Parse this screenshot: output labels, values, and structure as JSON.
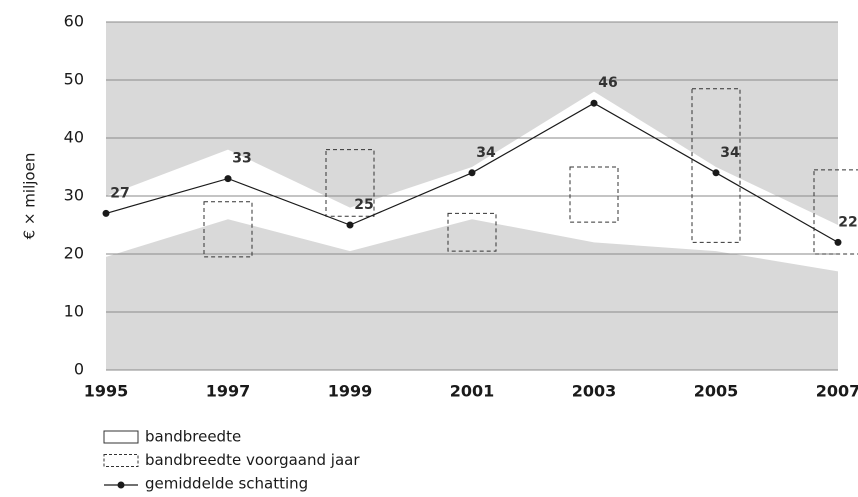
{
  "chart_data": {
    "type": "line",
    "ylabel": "€ × miljoen",
    "x": [
      1995,
      1997,
      1999,
      2001,
      2003,
      2005,
      2007
    ],
    "xlim": [
      1995,
      2007
    ],
    "xticks": [
      1995,
      1997,
      1999,
      2001,
      2003,
      2005,
      2007
    ],
    "ylim": [
      0,
      60
    ],
    "yticks": [
      0,
      10,
      20,
      30,
      40,
      50,
      60
    ],
    "grid": true,
    "background": "#d9d9d9",
    "series": [
      {
        "name": "bandbreedte",
        "kind": "band",
        "color": "#ffffff",
        "low": [
          19.5,
          26,
          20.5,
          26,
          22,
          20.5,
          17
        ],
        "high": [
          30,
          38,
          28,
          35,
          48,
          35,
          25
        ]
      },
      {
        "name": "bandbreedte voorgaand jaar",
        "kind": "box",
        "color": "#333333",
        "low": [
          null,
          19.5,
          26.5,
          20.5,
          25.5,
          22,
          20
        ],
        "high": [
          null,
          29,
          38,
          27,
          35,
          48.5,
          34.5
        ]
      },
      {
        "name": "gemiddelde schatting",
        "kind": "line",
        "color": "#1a1a1a",
        "values": [
          27,
          33,
          25,
          34,
          46,
          34,
          22
        ]
      }
    ]
  }
}
